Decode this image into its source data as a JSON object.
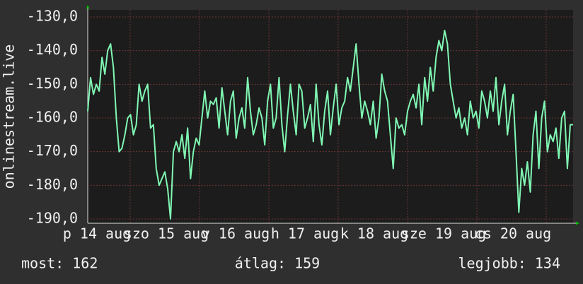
{
  "chart_data": {
    "type": "line",
    "y_label": "onlinestream.live",
    "x_labels": [
      "p 14 aug",
      "szo 15 aug",
      "v 16 aug",
      "h 17 aug",
      "k 18 aug",
      "sze 19 aug",
      "cs 20 aug"
    ],
    "color": "#80f8b4",
    "ylim": [
      -190,
      -130
    ],
    "yticks": [
      {
        "value": -130,
        "label": "-130,0"
      },
      {
        "value": -140,
        "label": "-140,0"
      },
      {
        "value": -150,
        "label": "-150,0"
      },
      {
        "value": -160,
        "label": "-160,0"
      },
      {
        "value": -170,
        "label": "-170,0"
      },
      {
        "value": -180,
        "label": "-180,0"
      },
      {
        "value": -190,
        "label": "-190,0"
      }
    ],
    "grid": true,
    "values": [
      -158,
      -148,
      -153,
      -150,
      -152,
      -142,
      -147,
      -140,
      -138,
      -145,
      -160,
      -170,
      -169,
      -165,
      -160,
      -159,
      -165,
      -162,
      -150,
      -155,
      -152,
      -150,
      -163,
      -162,
      -175,
      -180,
      -178,
      -176,
      -181,
      -190,
      -170,
      -167,
      -170,
      -165,
      -172,
      -163,
      -178,
      -170,
      -166,
      -168,
      -160,
      -152,
      -160,
      -155,
      -156,
      -154,
      -163,
      -151,
      -158,
      -165,
      -155,
      -152,
      -166,
      -160,
      -157,
      -163,
      -148,
      -158,
      -165,
      -162,
      -157,
      -160,
      -168,
      -155,
      -150,
      -163,
      -160,
      -148,
      -162,
      -170,
      -159,
      -150,
      -158,
      -165,
      -150,
      -152,
      -163,
      -160,
      -156,
      -167,
      -150,
      -162,
      -168,
      -158,
      -152,
      -165,
      -157,
      -150,
      -162,
      -157,
      -155,
      -148,
      -152,
      -145,
      -138,
      -150,
      -160,
      -155,
      -158,
      -162,
      -155,
      -166,
      -160,
      -147,
      -152,
      -155,
      -165,
      -175,
      -160,
      -163,
      -162,
      -165,
      -158,
      -155,
      -153,
      -157,
      -150,
      -162,
      -148,
      -155,
      -145,
      -152,
      -142,
      -137,
      -140,
      -134,
      -138,
      -150,
      -155,
      -160,
      -157,
      -163,
      -160,
      -165,
      -155,
      -160,
      -158,
      -163,
      -152,
      -155,
      -160,
      -152,
      -158,
      -148,
      -162,
      -155,
      -150,
      -165,
      -158,
      -153,
      -170,
      -188,
      -175,
      -180,
      -173,
      -182,
      -165,
      -158,
      -175,
      -160,
      -155,
      -170,
      -165,
      -167,
      -163,
      -172,
      -160,
      -158,
      -175,
      -162,
      -162
    ]
  },
  "footer": {
    "current": "most: 162",
    "average": "átlag: 159",
    "best": "legjobb: 134"
  }
}
